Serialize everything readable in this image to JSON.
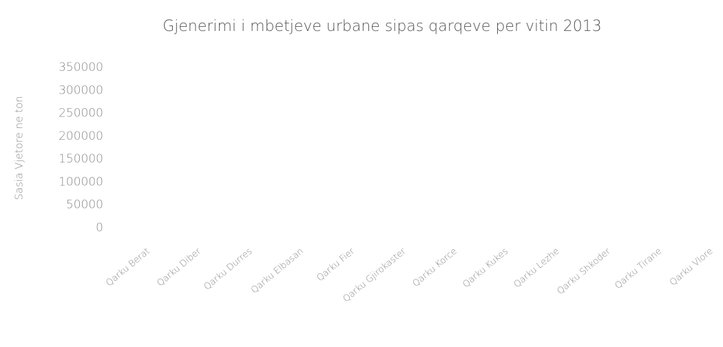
{
  "chart_data": {
    "type": "bar",
    "title": "Gjenerimi i mbetjeve urbane sipas qarqeve per vitin 2013",
    "y_axis_label": "Sasia Vjetore ne ton",
    "categories": [
      "Qarku Berat",
      "Qarku Diber",
      "Qarku Durres",
      "Qarku Elbasan",
      "Qarku Fier",
      "Qarku Gjirokaster",
      "Qarku Korce",
      "Qarku Kukes",
      "Qarku Lezhe",
      "Qarku Shkoder",
      "Qarku Tirane",
      "Qarku Vlore"
    ],
    "ylim": [
      0,
      350000
    ],
    "yticks": [
      0,
      50000,
      100000,
      150000,
      200000,
      250000,
      300000,
      350000
    ],
    "grid": false
  }
}
